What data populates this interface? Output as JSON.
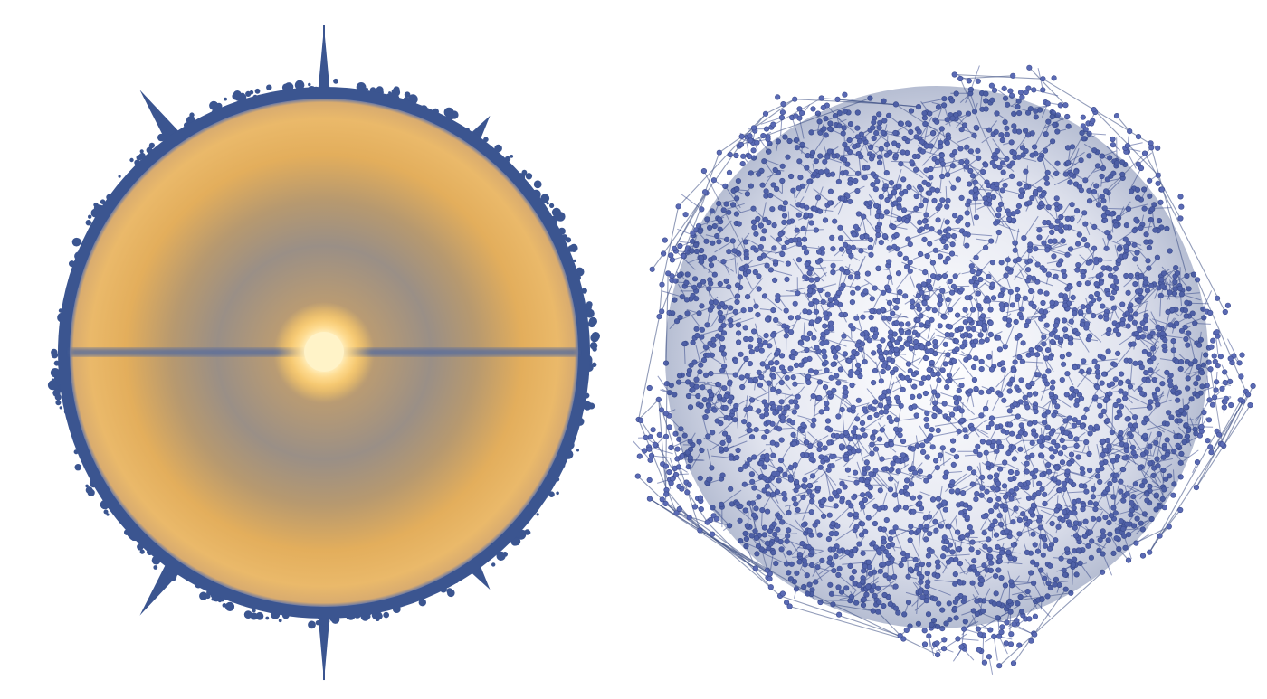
{
  "panels": [
    {
      "id": "radial-density",
      "kind": "radial-density-disk",
      "colors": {
        "outer_ring": "#3b5590",
        "glow_core": "#fff3c8",
        "ring_warm": "#e8b466",
        "ring_mid": "#c9a36c",
        "ring_inner": "#9a8f86",
        "equator_band": "#5d6e9a"
      },
      "spike_count": 6
    },
    {
      "id": "network-graph",
      "kind": "node-link-network",
      "colors": {
        "node_fill": "#5a6ab4",
        "node_edge": "#3d4c8f",
        "link": "#4a5a8a",
        "dense_shadow": "#2f4580"
      }
    }
  ]
}
